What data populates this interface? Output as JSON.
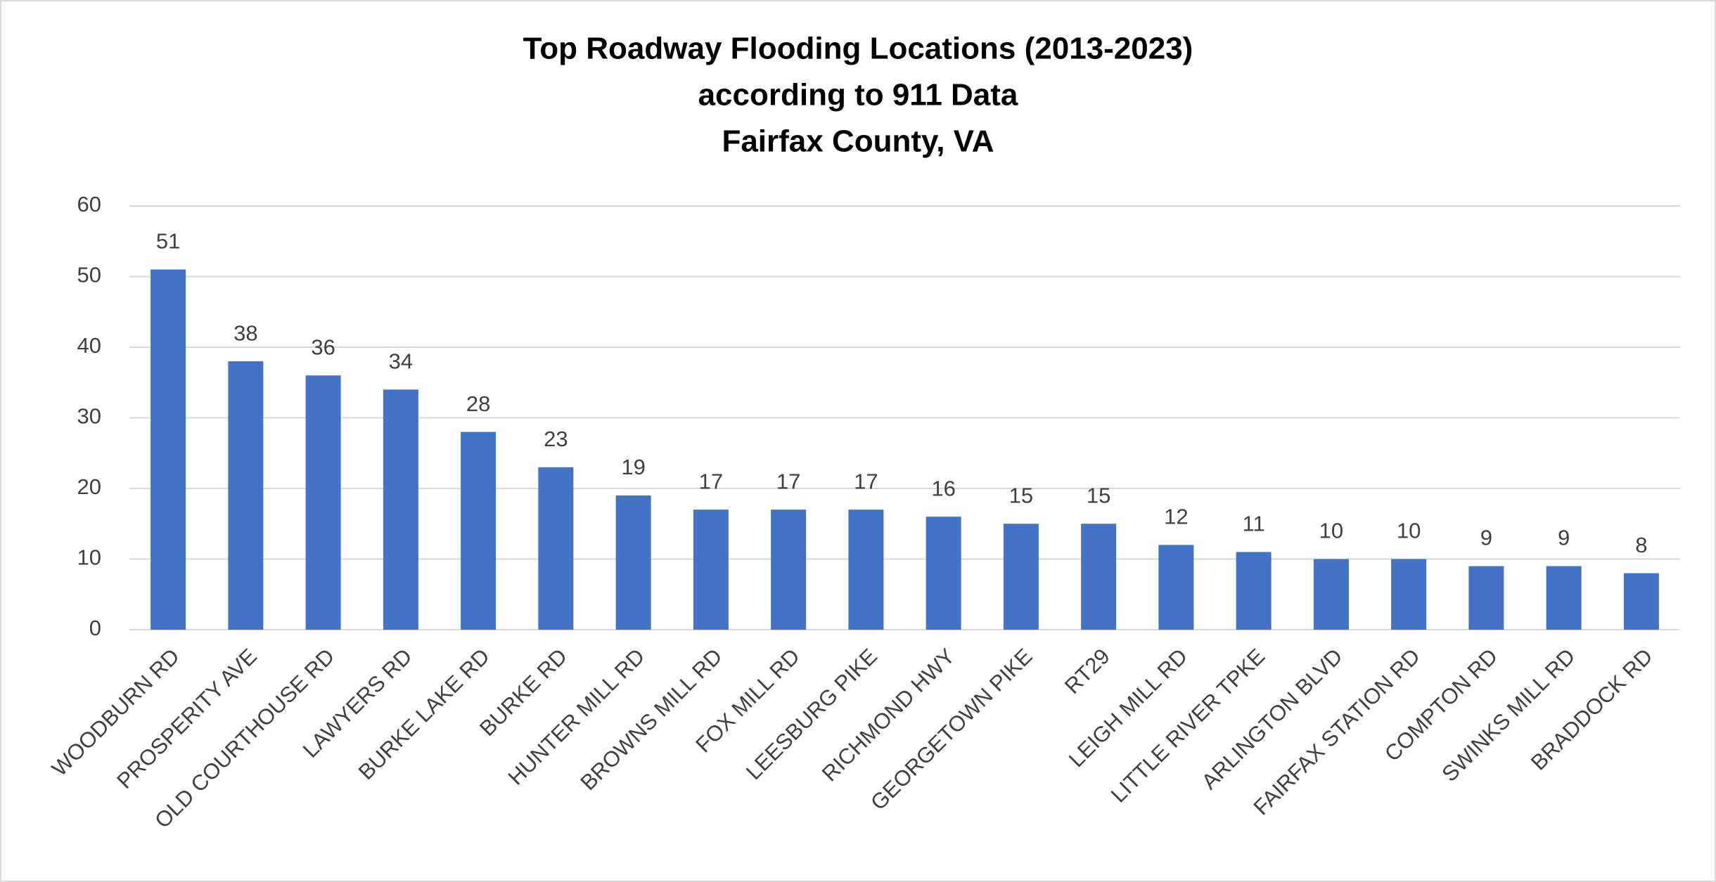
{
  "chart_data": {
    "type": "bar",
    "title": [
      "Top Roadway Flooding Locations (2013-2023)",
      "according to 911 Data",
      "Fairfax County, VA"
    ],
    "categories": [
      "WOODBURN RD",
      "PROSPERITY AVE",
      "OLD COURTHOUSE RD",
      "LAWYERS RD",
      "BURKE LAKE RD",
      "BURKE RD",
      "HUNTER MILL RD",
      "BROWNS MILL RD",
      "FOX MILL RD",
      "LEESBURG PIKE",
      "RICHMOND HWY",
      "GEORGETOWN PIKE",
      "RT29",
      "LEIGH MILL RD",
      "LITTLE RIVER TPKE",
      "ARLINGTON BLVD",
      "FAIRFAX STATION RD",
      "COMPTON RD",
      "SWINKS MILL RD",
      "BRADDOCK RD"
    ],
    "values": [
      51,
      38,
      36,
      34,
      28,
      23,
      19,
      17,
      17,
      17,
      16,
      15,
      15,
      12,
      11,
      10,
      10,
      9,
      9,
      8
    ],
    "color": "#4472c4",
    "ylim": [
      0,
      60
    ],
    "yticks": [
      0,
      10,
      20,
      30,
      40,
      50,
      60
    ],
    "grid": true
  }
}
